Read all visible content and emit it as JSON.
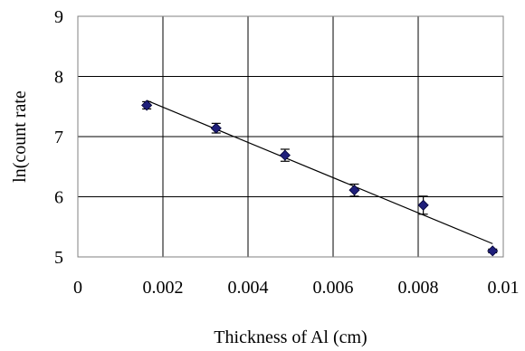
{
  "chart_data": {
    "type": "scatter",
    "title": "",
    "xlabel": "Thickness of Al (cm)",
    "ylabel": "ln(count rate",
    "xlim": [
      0,
      0.01
    ],
    "ylim": [
      5,
      9
    ],
    "x_ticks": [
      "0",
      "0.002",
      "0.004",
      "0.006",
      "0.008",
      "0.01"
    ],
    "y_ticks": [
      "5",
      "6",
      "7",
      "8",
      "9"
    ],
    "grid": true,
    "legend": "none",
    "marker": "diamond",
    "marker_color": "#1f1f7a",
    "series": [
      {
        "x": [
          0.00162,
          0.00325,
          0.00487,
          0.0065,
          0.00812,
          0.00975
        ],
        "y": [
          7.52,
          7.14,
          6.69,
          6.11,
          5.86,
          5.1
        ],
        "y_err": [
          0.06,
          0.08,
          0.1,
          0.1,
          0.15,
          0.03
        ]
      }
    ],
    "trendline": {
      "x": [
        0.00162,
        0.00975
      ],
      "y": [
        7.6,
        5.22
      ],
      "color": "#000000"
    }
  }
}
